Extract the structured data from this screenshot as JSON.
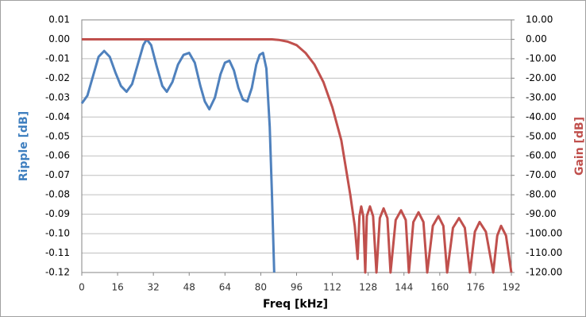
{
  "chart_data": {
    "type": "line",
    "xlabel": "Freq [kHz]",
    "ylabel": "Ripple [dB]",
    "y2label": "Gain [dB]",
    "ylabel_color": "#3f7fbf",
    "y2label_color": "#c0504d",
    "grid": true,
    "xlim": [
      0,
      192
    ],
    "xticks": [
      0,
      16,
      32,
      48,
      64,
      80,
      96,
      112,
      128,
      144,
      160,
      176,
      192
    ],
    "ylim": [
      -0.12,
      0.01
    ],
    "yticks": [
      0.01,
      {
        "value": 0,
        "label": "0.00"
      },
      -0.01,
      -0.02,
      -0.03,
      -0.04,
      -0.05,
      -0.06,
      -0.07,
      -0.08,
      -0.09,
      {
        "value": -0.1,
        "label": "-0.10"
      },
      -0.11,
      -0.12
    ],
    "y2lim": [
      -120,
      10
    ],
    "y2ticks": [
      {
        "value": 10,
        "label": "10.00"
      },
      {
        "value": 0,
        "label": "0.00"
      },
      {
        "value": -10,
        "label": "-10.00"
      },
      {
        "value": -20,
        "label": "-20.00"
      },
      {
        "value": -30,
        "label": "-30.00"
      },
      {
        "value": -40,
        "label": "-40.00"
      },
      {
        "value": -50,
        "label": "-50.00"
      },
      {
        "value": -60,
        "label": "-60.00"
      },
      {
        "value": -70,
        "label": "-70.00"
      },
      {
        "value": -80,
        "label": "-80.00"
      },
      {
        "value": -90,
        "label": "-90.00"
      },
      {
        "value": -100,
        "label": "-100.00"
      },
      {
        "value": -110,
        "label": "-110.00"
      },
      {
        "value": -120,
        "label": "-120.00"
      }
    ],
    "series": [
      {
        "color": "#4f81bd",
        "axis": "y",
        "x": [
          0,
          2.5,
          5,
          7.5,
          10,
          12.5,
          15,
          17.5,
          20,
          22.5,
          25,
          27.5,
          29,
          31,
          33.5,
          36,
          38,
          40.5,
          43,
          45.5,
          48,
          50.5,
          53,
          55,
          57,
          59.5,
          62,
          64,
          66,
          68,
          70,
          72,
          74,
          76,
          78,
          79.5,
          81,
          82.5,
          84,
          85,
          86
        ],
        "values": [
          -0.033,
          -0.029,
          -0.019,
          -0.009,
          -0.006,
          -0.009,
          -0.017,
          -0.024,
          -0.027,
          -0.023,
          -0.013,
          -0.003,
          0,
          -0.003,
          -0.014,
          -0.024,
          -0.027,
          -0.022,
          -0.013,
          -0.008,
          -0.007,
          -0.012,
          -0.024,
          -0.032,
          -0.036,
          -0.03,
          -0.018,
          -0.012,
          -0.011,
          -0.016,
          -0.025,
          -0.031,
          -0.032,
          -0.025,
          -0.013,
          -0.008,
          -0.007,
          -0.015,
          -0.045,
          -0.08,
          -0.12
        ]
      },
      {
        "color": "#c0504d",
        "axis": "y2",
        "x": [
          0,
          20,
          40,
          60,
          80,
          85,
          88,
          92,
          96,
          100,
          104,
          108,
          112,
          116,
          120,
          122,
          123.3,
          124.1,
          124.9,
          125.8,
          126.7,
          127.4,
          128.8,
          130.2,
          131.7,
          133.2,
          134.9,
          136.6,
          138,
          140.3,
          142.7,
          144.8,
          146.2,
          148.2,
          150.5,
          152.7,
          154.4,
          156.9,
          159.4,
          161.6,
          163.3,
          165.9,
          168.6,
          171.2,
          173.5,
          175.7,
          177.8,
          180.6,
          183.9,
          185.7,
          187.4,
          189.6,
          192
        ],
        "values": [
          0,
          0,
          0,
          0,
          0,
          0,
          -0.3,
          -1.2,
          -3,
          -7,
          -13,
          -22,
          -35,
          -52,
          -80,
          -96,
          -113,
          -91,
          -86,
          -91,
          -120,
          -91,
          -86,
          -91,
          -120,
          -92,
          -87,
          -92,
          -120,
          -93,
          -88,
          -93,
          -120,
          -94,
          -89,
          -94,
          -120,
          -96,
          -91,
          -96,
          -120,
          -97,
          -92,
          -97,
          -120,
          -99,
          -94,
          -99,
          -120,
          -101,
          -96,
          -101,
          -120
        ]
      }
    ]
  }
}
